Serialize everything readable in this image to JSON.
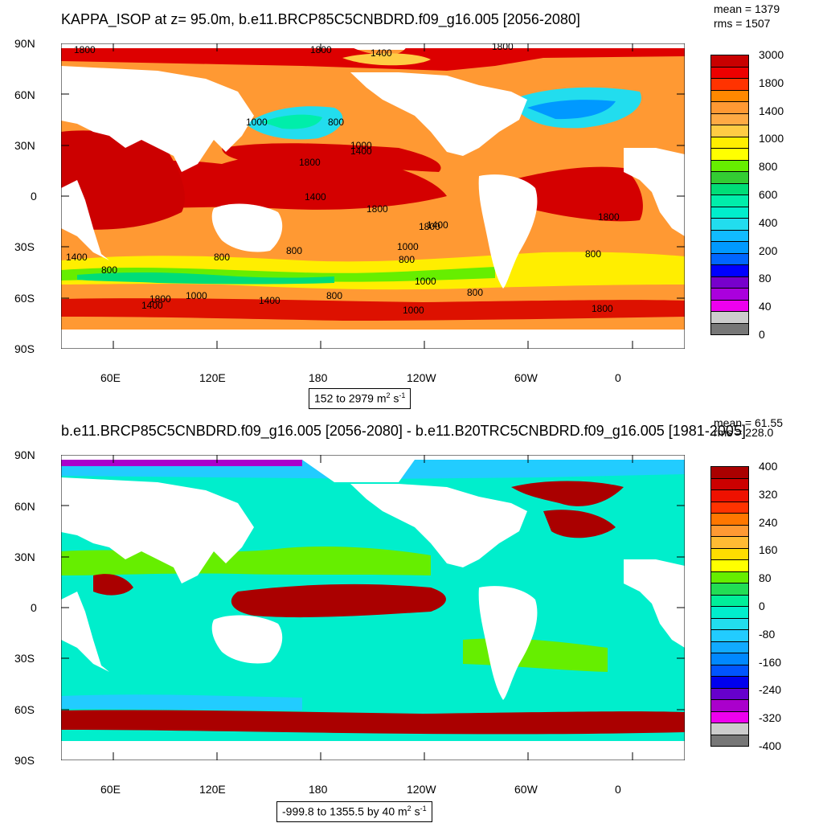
{
  "panels": [
    {
      "title": "KAPPA_ISOP at z=  95.0m, b.e11.BRCP85C5CNBDRD.f09_g16.005 [2056-2080]",
      "mean": "mean = 1379",
      "rms": "rms = 1507",
      "range_main": "152 to 2979 m",
      "range_sup1": "2",
      "range_mid": " s",
      "range_sup2": "-1",
      "colorbar_labels": [
        "3000",
        "1800",
        "1400",
        "1000",
        "800",
        "600",
        "400",
        "200",
        "80",
        "40",
        "0"
      ],
      "colorbar_colors": [
        "#c80000",
        "#ee0000",
        "#ff3300",
        "#ff8800",
        "#ff9933",
        "#ffaa44",
        "#ffcc44",
        "#ffee00",
        "#ffff00",
        "#66ee00",
        "#33cc33",
        "#00dd77",
        "#00eeaa",
        "#00eecc",
        "#22ddee",
        "#11bbff",
        "#0099ff",
        "#0066ff",
        "#0000ff",
        "#7700cc",
        "#aa00dd",
        "#ee00ee",
        "#cccccc",
        "#777777"
      ]
    },
    {
      "title": "b.e11.BRCP85C5CNBDRD.f09_g16.005 [2056-2080] - b.e11.B20TRC5CNBDRD.f09_g16.005 [1981-2005]",
      "mean": "mean = 61.55",
      "rms": "rms = 228.0",
      "range_main": "-999.8 to 1355.5 by 40 m",
      "range_sup1": "2",
      "range_mid": " s",
      "range_sup2": "-1",
      "colorbar_labels": [
        "400",
        "320",
        "240",
        "160",
        "80",
        "0",
        "-80",
        "-160",
        "-240",
        "-320",
        "-400"
      ],
      "colorbar_colors": [
        "#aa0000",
        "#cc0000",
        "#ee1100",
        "#ff3300",
        "#ff7700",
        "#ff9933",
        "#ffbb33",
        "#ffdd00",
        "#ffff00",
        "#66ee00",
        "#22dd55",
        "#00ee99",
        "#00eecc",
        "#22ddee",
        "#22ccff",
        "#11aaff",
        "#0088ff",
        "#0055ff",
        "#0000ee",
        "#6600cc",
        "#aa00cc",
        "#ee00ee",
        "#cccccc",
        "#777777"
      ]
    }
  ],
  "map_axes": {
    "lat_labels": [
      "90N",
      "60N",
      "30N",
      "0",
      "30S",
      "60S",
      "90S"
    ],
    "lon_labels": [
      "60E",
      "120E",
      "180",
      "120W",
      "60W",
      "0"
    ]
  },
  "map_data": {
    "projection": "cylindrical equidistant",
    "lon_range": [
      30,
      390
    ],
    "lat_range": [
      -90,
      90
    ],
    "contour_labels_top": [
      "1800",
      "1800",
      "1400",
      "1800",
      "800",
      "1000",
      "1400",
      "1800",
      "1400",
      "1800",
      "1800",
      "1400",
      "1000",
      "800",
      "800",
      "1000",
      "800",
      "1400",
      "800",
      "800",
      "1000",
      "1800",
      "800",
      "1800",
      "1400",
      "800",
      "1000",
      "1400",
      "1000",
      "1800"
    ]
  }
}
